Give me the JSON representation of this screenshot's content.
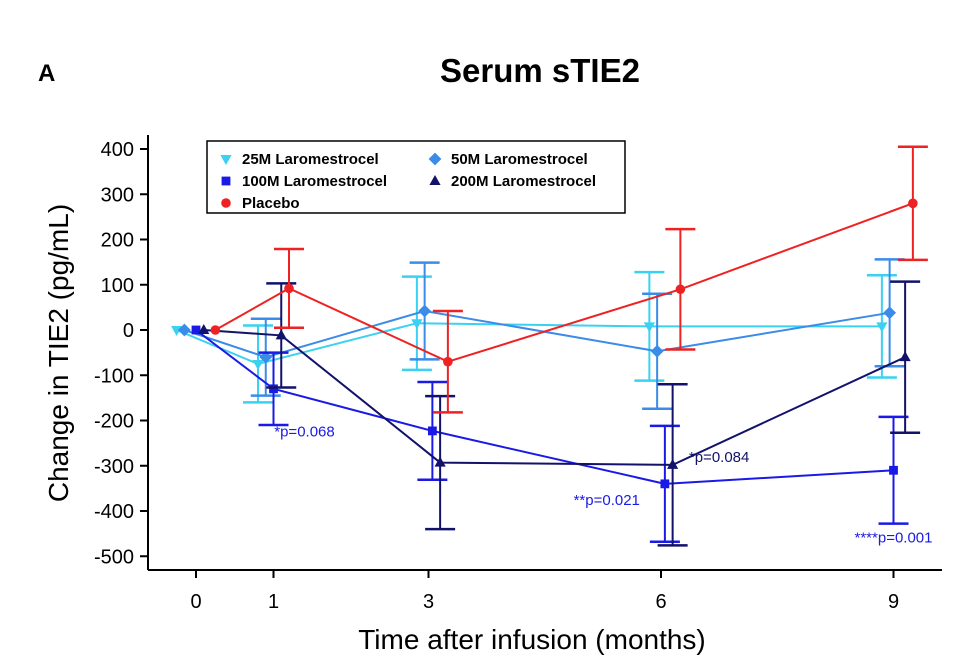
{
  "panel_label": "A",
  "colors": {
    "25M Laromestrocel": "#3ad1f2",
    "50M Laromestrocel": "#3a8ce8",
    "100M Laromestrocel": "#1a1ae6",
    "200M Laromestrocel": "#12126b",
    "Placebo": "#ee2222"
  },
  "chart_data": {
    "type": "line",
    "title": "Serum sTIE2",
    "xlabel": "Time after infusion (months)",
    "ylabel": "Change in TIE2 (pg/mL)",
    "xlim": [
      -0.6,
      9.6
    ],
    "ylim": [
      -520,
      420
    ],
    "xticks": [
      0,
      1,
      3,
      6,
      9
    ],
    "yticks": [
      400,
      300,
      200,
      100,
      0,
      -100,
      -200,
      -300,
      -400,
      -500
    ],
    "grid": false,
    "legend_placement": "top-left",
    "series": [
      {
        "name": "25M Laromestrocel",
        "marker": "triangle-down",
        "x": [
          -0.25,
          0.8,
          2.85,
          5.85,
          8.85
        ],
        "y": [
          0,
          -75,
          15,
          8,
          8
        ],
        "err": [
          null,
          85,
          103,
          120,
          113
        ]
      },
      {
        "name": "50M Laromestrocel",
        "marker": "diamond",
        "x": [
          -0.15,
          0.9,
          2.95,
          5.95,
          8.95
        ],
        "y": [
          0,
          -60,
          42,
          -47,
          38
        ],
        "err": [
          null,
          85,
          107,
          127,
          118
        ]
      },
      {
        "name": "100M Laromestrocel",
        "marker": "square",
        "x": [
          0,
          1.0,
          3.05,
          6.05,
          9.0
        ],
        "y": [
          0,
          -130,
          -223,
          -340,
          -310
        ],
        "err": [
          null,
          80,
          108,
          128,
          118
        ]
      },
      {
        "name": "200M Laromestrocel",
        "marker": "triangle-up",
        "x": [
          0.1,
          1.1,
          3.15,
          6.15,
          9.15
        ],
        "y": [
          0,
          -12,
          -293,
          -298,
          -60
        ],
        "err": [
          null,
          115,
          147,
          178,
          167
        ]
      },
      {
        "name": "Placebo",
        "marker": "circle",
        "x": [
          0.25,
          1.2,
          3.25,
          6.25,
          9.25
        ],
        "y": [
          0,
          92,
          -70,
          90,
          280
        ],
        "err": [
          null,
          87,
          112,
          133,
          125
        ]
      }
    ],
    "annotations": [
      {
        "text": "*p=0.068",
        "x": 1.4,
        "y": -235,
        "series": "100M Laromestrocel"
      },
      {
        "text": "**p=0.021",
        "x": 5.3,
        "y": -387,
        "series": "100M Laromestrocel"
      },
      {
        "text": "*p=0.084",
        "x": 6.75,
        "y": -292,
        "series": "200M Laromestrocel"
      },
      {
        "text": "****p=0.001",
        "x": 9.0,
        "y": -470,
        "series": "100M Laromestrocel"
      }
    ]
  }
}
